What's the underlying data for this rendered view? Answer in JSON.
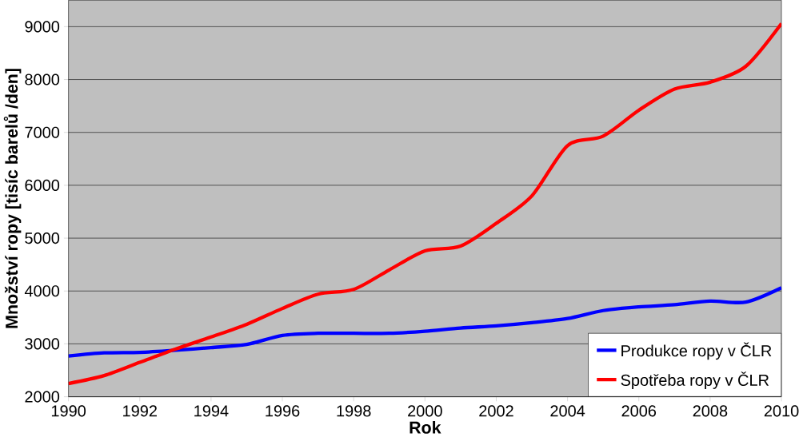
{
  "chart_data": {
    "type": "line",
    "xlabel": "Rok",
    "ylabel": "Množství ropy [tisíc barelů /den]",
    "x": [
      1990,
      1991,
      1992,
      1993,
      1994,
      1995,
      1996,
      1997,
      1998,
      1999,
      2000,
      2001,
      2002,
      2003,
      2004,
      2005,
      2006,
      2007,
      2008,
      2009,
      2010
    ],
    "series": [
      {
        "name": "Produkce ropy v ČLR",
        "color": "#0000ff",
        "values": [
          2770,
          2830,
          2840,
          2880,
          2930,
          2990,
          3160,
          3200,
          3200,
          3200,
          3240,
          3300,
          3340,
          3400,
          3480,
          3630,
          3700,
          3740,
          3810,
          3790,
          4060
        ]
      },
      {
        "name": "Spotřeba ropy v ČLR",
        "color": "#ff0000",
        "values": [
          2250,
          2400,
          2650,
          2900,
          3130,
          3370,
          3670,
          3940,
          4030,
          4400,
          4760,
          4850,
          5280,
          5800,
          6750,
          6930,
          7420,
          7820,
          7950,
          8250,
          9060
        ]
      }
    ],
    "xlim": [
      1990,
      2010
    ],
    "ylim": [
      2000,
      9500
    ],
    "xticks": [
      1990,
      1992,
      1994,
      1996,
      1998,
      2000,
      2002,
      2004,
      2006,
      2008,
      2010
    ],
    "yticks": [
      2000,
      3000,
      4000,
      5000,
      6000,
      7000,
      8000,
      9000
    ],
    "grid": "y",
    "legend": "bottom right",
    "marker": "none",
    "line_style": "solid"
  }
}
